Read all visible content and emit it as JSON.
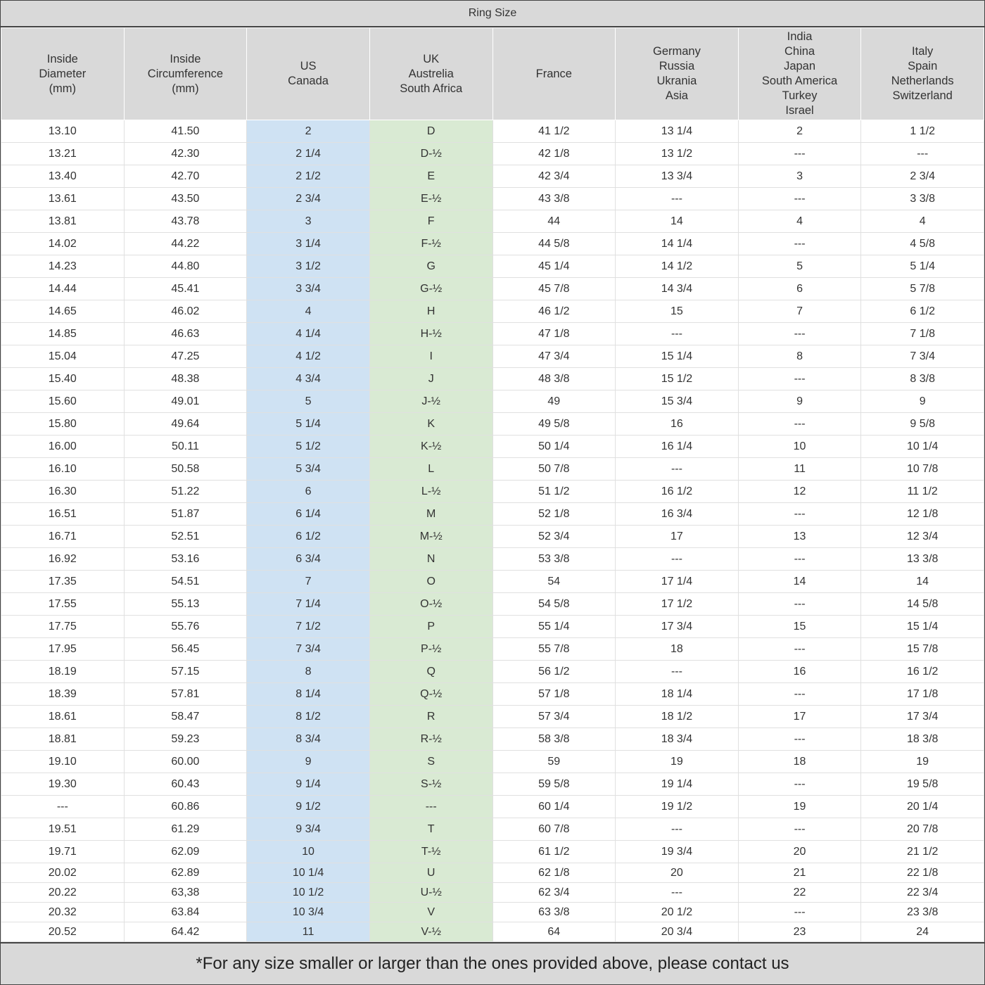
{
  "title": "Ring Size",
  "colors": {
    "us_column": "#cfe2f3",
    "uk_column": "#d9ead3",
    "header_bg": "#d9d9d9"
  },
  "headers": [
    "Inside\nDiameter\n(mm)",
    "Inside\nCircumference\n(mm)",
    "US\nCanada",
    "UK\nAustrelia\nSouth Africa",
    "France",
    "Germany\nRussia\nUkrania\nAsia",
    "India\nChina\nJapan\nSouth America\nTurkey\nIsrael",
    "Italy\nSpain\nNetherlands\nSwitzerland"
  ],
  "rows": [
    [
      "13.10",
      "41.50",
      "2",
      "D",
      "41 1/2",
      "13 1/4",
      "2",
      "1 1/2"
    ],
    [
      "13.21",
      "42.30",
      "2 1/4",
      "D-½",
      "42 1/8",
      "13 1/2",
      "---",
      "---"
    ],
    [
      "13.40",
      "42.70",
      "2 1/2",
      "E",
      "42 3/4",
      "13 3/4",
      "3",
      "2 3/4"
    ],
    [
      "13.61",
      "43.50",
      "2 3/4",
      "E-½",
      "43 3/8",
      "---",
      "---",
      "3 3/8"
    ],
    [
      "13.81",
      "43.78",
      "3",
      "F",
      "44",
      "14",
      "4",
      "4"
    ],
    [
      "14.02",
      "44.22",
      "3 1/4",
      "F-½",
      "44 5/8",
      "14 1/4",
      "---",
      "4 5/8"
    ],
    [
      "14.23",
      "44.80",
      "3 1/2",
      "G",
      "45 1/4",
      "14 1/2",
      "5",
      "5 1/4"
    ],
    [
      "14.44",
      "45.41",
      "3 3/4",
      "G-½",
      "45 7/8",
      "14 3/4",
      "6",
      "5 7/8"
    ],
    [
      "14.65",
      "46.02",
      "4",
      "H",
      "46 1/2",
      "15",
      "7",
      "6 1/2"
    ],
    [
      "14.85",
      "46.63",
      "4 1/4",
      "H-½",
      "47 1/8",
      "---",
      "---",
      "7 1/8"
    ],
    [
      "15.04",
      "47.25",
      "4 1/2",
      "I",
      "47 3/4",
      "15 1/4",
      "8",
      "7 3/4"
    ],
    [
      "15.40",
      "48.38",
      "4 3/4",
      "J",
      "48 3/8",
      "15 1/2",
      "---",
      "8 3/8"
    ],
    [
      "15.60",
      "49.01",
      "5",
      "J-½",
      "49",
      "15 3/4",
      "9",
      "9"
    ],
    [
      "15.80",
      "49.64",
      "5 1/4",
      "K",
      "49 5/8",
      "16",
      "---",
      "9 5/8"
    ],
    [
      "16.00",
      "50.11",
      "5 1/2",
      "K-½",
      "50 1/4",
      "16 1/4",
      "10",
      "10 1/4"
    ],
    [
      "16.10",
      "50.58",
      "5 3/4",
      "L",
      "50 7/8",
      "---",
      "11",
      "10 7/8"
    ],
    [
      "16.30",
      "51.22",
      "6",
      "L-½",
      "51 1/2",
      "16 1/2",
      "12",
      "11 1/2"
    ],
    [
      "16.51",
      "51.87",
      "6 1/4",
      "M",
      "52 1/8",
      "16 3/4",
      "---",
      "12 1/8"
    ],
    [
      "16.71",
      "52.51",
      "6 1/2",
      "M-½",
      "52 3/4",
      "17",
      "13",
      "12 3/4"
    ],
    [
      "16.92",
      "53.16",
      "6 3/4",
      "N",
      "53 3/8",
      "---",
      "---",
      "13 3/8"
    ],
    [
      "17.35",
      "54.51",
      "7",
      "O",
      "54",
      "17 1/4",
      "14",
      "14"
    ],
    [
      "17.55",
      "55.13",
      "7 1/4",
      "O-½",
      "54 5/8",
      "17 1/2",
      "---",
      "14 5/8"
    ],
    [
      "17.75",
      "55.76",
      "7 1/2",
      "P",
      "55 1/4",
      "17 3/4",
      "15",
      "15 1/4"
    ],
    [
      "17.95",
      "56.45",
      "7 3/4",
      "P-½",
      "55 7/8",
      "18",
      "---",
      "15 7/8"
    ],
    [
      "18.19",
      "57.15",
      "8",
      "Q",
      "56 1/2",
      "---",
      "16",
      "16 1/2"
    ],
    [
      "18.39",
      "57.81",
      "8 1/4",
      "Q-½",
      "57 1/8",
      "18 1/4",
      "---",
      "17 1/8"
    ],
    [
      "18.61",
      "58.47",
      "8 1/2",
      "R",
      "57 3/4",
      "18 1/2",
      "17",
      "17 3/4"
    ],
    [
      "18.81",
      "59.23",
      "8 3/4",
      "R-½",
      "58 3/8",
      "18 3/4",
      "---",
      "18 3/8"
    ],
    [
      "19.10",
      "60.00",
      "9",
      "S",
      "59",
      "19",
      "18",
      "19"
    ],
    [
      "19.30",
      "60.43",
      "9 1/4",
      "S-½",
      "59 5/8",
      "19 1/4",
      "---",
      "19 5/8"
    ],
    [
      "---",
      "60.86",
      "9 1/2",
      "---",
      "60 1/4",
      "19 1/2",
      "19",
      "20 1/4"
    ],
    [
      "19.51",
      "61.29",
      "9 3/4",
      "T",
      "60 7/8",
      "---",
      "---",
      "20 7/8"
    ],
    [
      "19.71",
      "62.09",
      "10",
      "T-½",
      "61 1/2",
      "19 3/4",
      "20",
      "21 1/2"
    ],
    [
      "20.02",
      "62.89",
      "10 1/4",
      "U",
      "62 1/8",
      "20",
      "21",
      "22 1/8"
    ],
    [
      "20.22",
      "63,38",
      "10 1/2",
      "U-½",
      "62 3/4",
      "---",
      "22",
      "22 3/4"
    ],
    [
      "20.32",
      "63.84",
      "10 3/4",
      "V",
      "63 3/8",
      "20 1/2",
      "---",
      "23 3/8"
    ],
    [
      "20.52",
      "64.42",
      "11",
      "V-½",
      "64",
      "20 3/4",
      "23",
      "24"
    ]
  ],
  "footer": "*For any size smaller or larger than the ones provided above, please contact us"
}
